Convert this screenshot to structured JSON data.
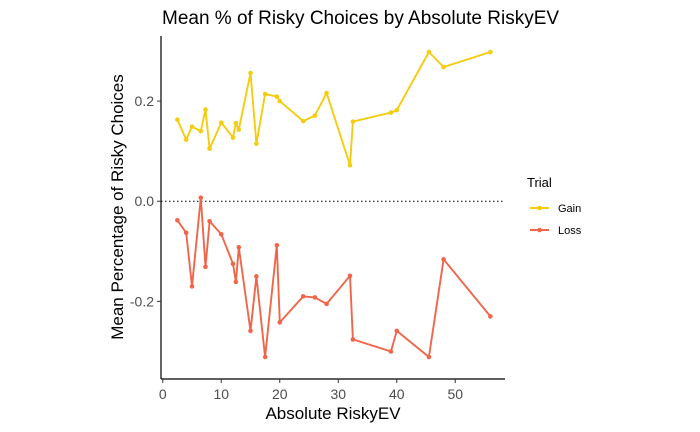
{
  "chart_data": {
    "type": "line",
    "title": "Mean % of Risky Choices by Absolute RiskyEV",
    "xlabel": "Absolute RiskyEV",
    "ylabel": "Mean Percentage of Risky Choices",
    "xlim": [
      -0.3,
      58.5
    ],
    "ylim": [
      -0.355,
      0.33
    ],
    "x_ticks": [
      0,
      10,
      20,
      30,
      40,
      50
    ],
    "y_ticks": [
      -0.2,
      0.0,
      0.2
    ],
    "x_tick_labels": [
      "0",
      "10",
      "20",
      "30",
      "40",
      "50"
    ],
    "y_tick_labels": [
      "-0.2",
      "0.0",
      "0.2"
    ],
    "reference_line": {
      "y": 0.0,
      "style": "dotted"
    },
    "grid": false,
    "legend": {
      "title": "Trial",
      "position": "right"
    },
    "series": [
      {
        "name": "Gain",
        "color": "#F5CC0F",
        "x": [
          2.5,
          4.0,
          5.0,
          6.5,
          7.3,
          8.0,
          10.0,
          12.0,
          12.5,
          13.0,
          15.0,
          16.0,
          17.5,
          19.5,
          20.0,
          24.0,
          26.0,
          28.0,
          32.0,
          32.5,
          39.0,
          40.0,
          45.5,
          48.0,
          56.0
        ],
        "values": [
          0.163,
          0.123,
          0.149,
          0.14,
          0.183,
          0.105,
          0.157,
          0.127,
          0.156,
          0.143,
          0.256,
          0.115,
          0.214,
          0.209,
          0.2,
          0.16,
          0.171,
          0.216,
          0.072,
          0.159,
          0.177,
          0.182,
          0.298,
          0.268,
          0.298
        ]
      },
      {
        "name": "Loss",
        "color": "#F0664A",
        "x": [
          2.5,
          4.0,
          5.0,
          6.5,
          7.3,
          8.0,
          10.0,
          12.0,
          12.5,
          13.0,
          15.0,
          16.0,
          17.5,
          19.5,
          20.0,
          24.0,
          26.0,
          28.0,
          32.0,
          32.5,
          39.0,
          40.0,
          45.5,
          48.0,
          56.0
        ],
        "values": [
          -0.038,
          -0.063,
          -0.17,
          0.007,
          -0.131,
          -0.04,
          -0.066,
          -0.125,
          -0.161,
          -0.092,
          -0.259,
          -0.15,
          -0.311,
          -0.088,
          -0.242,
          -0.19,
          -0.192,
          -0.205,
          -0.149,
          -0.276,
          -0.3,
          -0.259,
          -0.311,
          -0.116,
          -0.23
        ]
      }
    ]
  }
}
